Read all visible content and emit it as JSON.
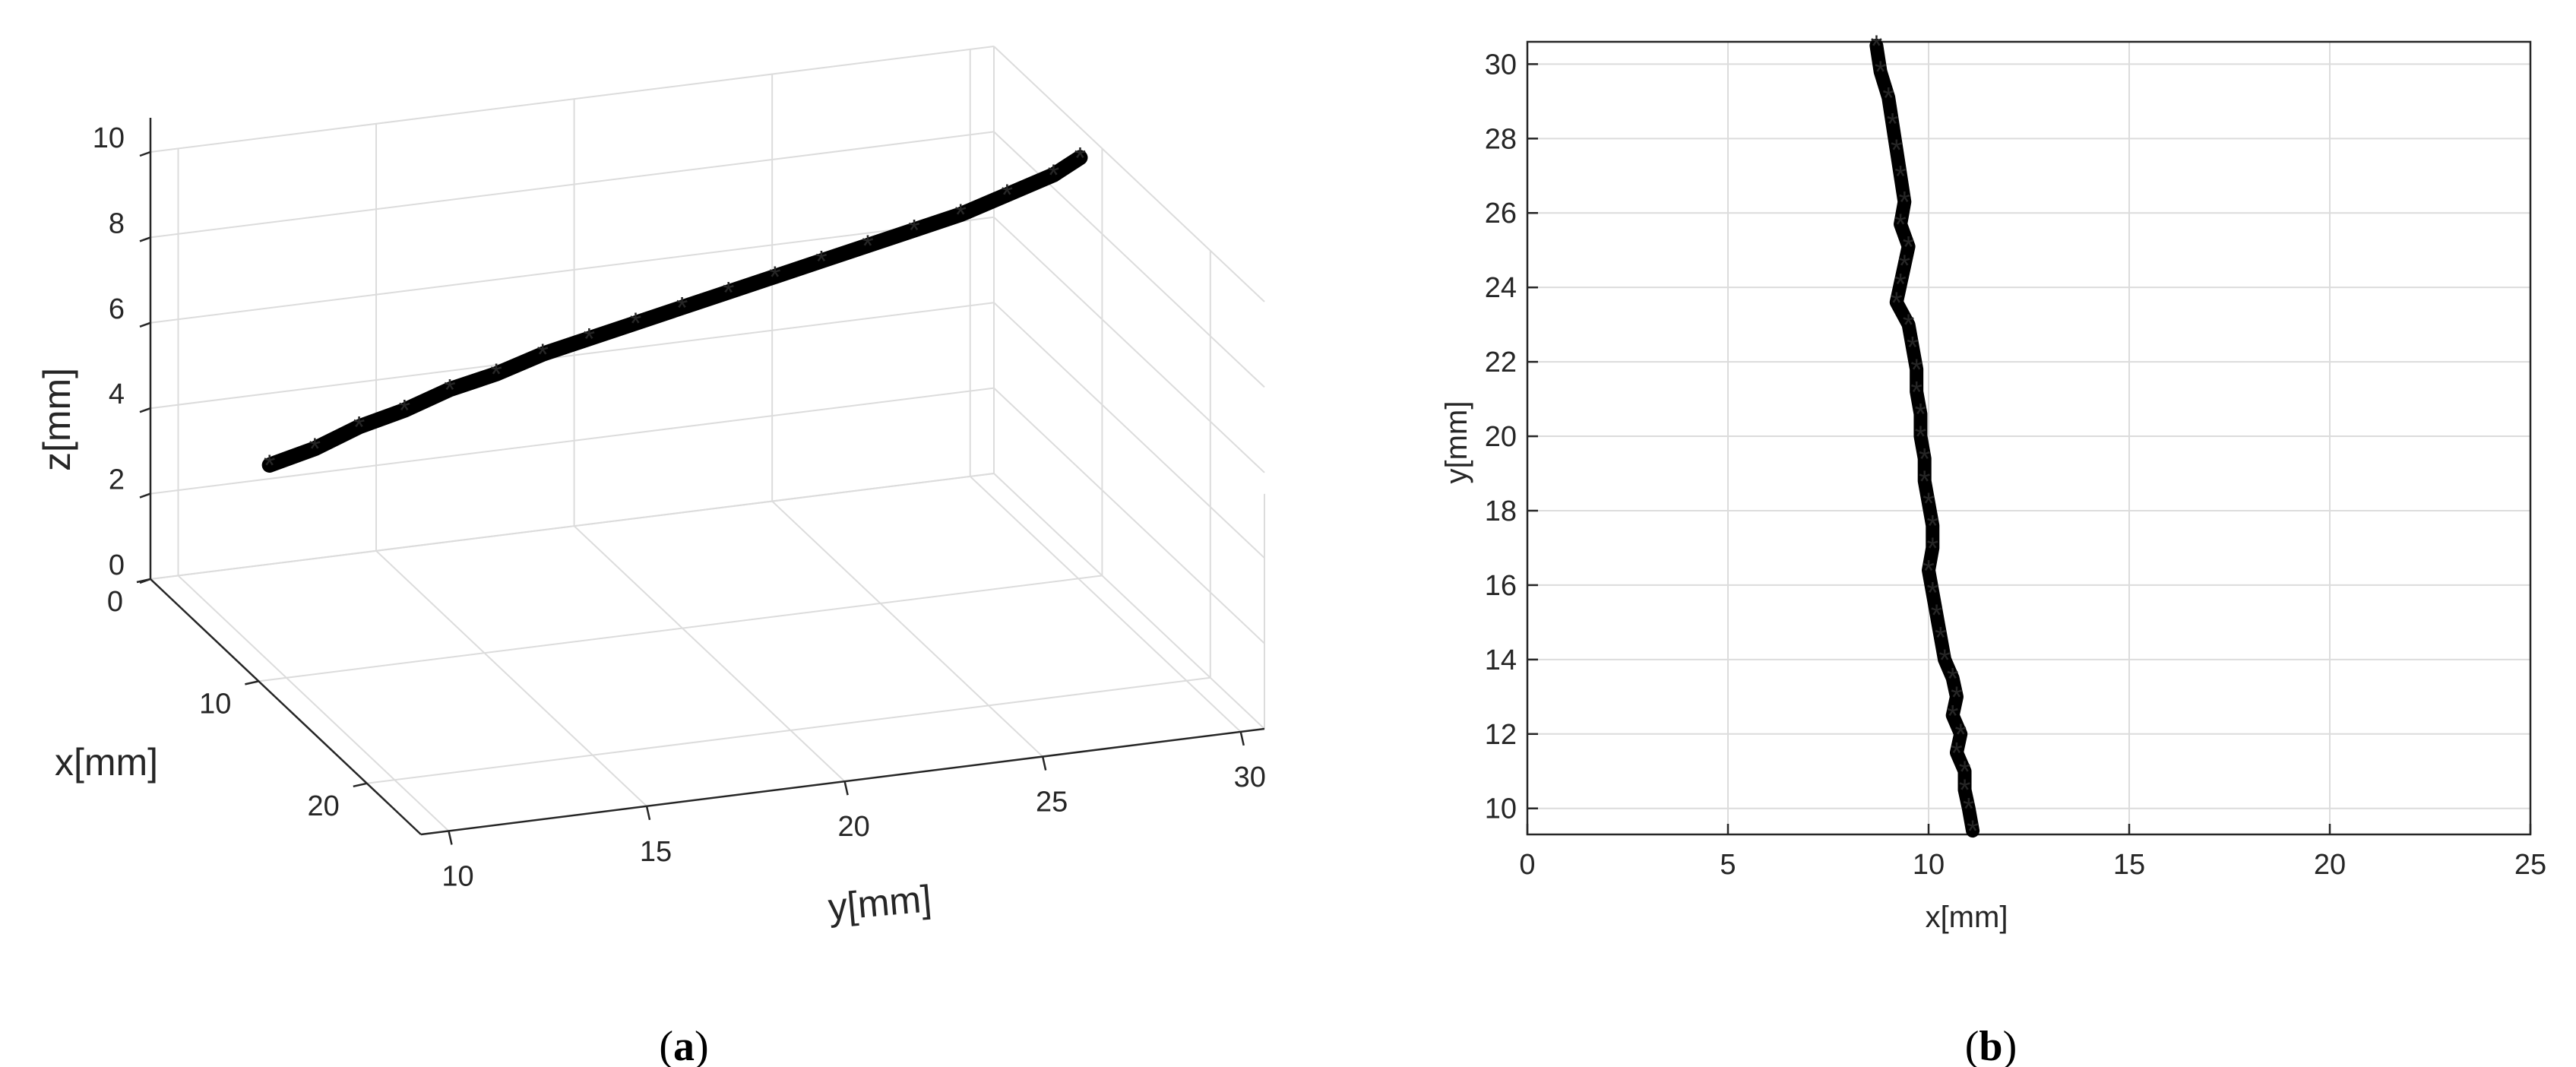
{
  "chart_data": [
    {
      "panel": "(a)",
      "caption_letter": "a",
      "type": "line3d",
      "xlabel": "x[mm]",
      "ylabel": "y[mm]",
      "zlabel": "z[mm]",
      "x_ticks": [
        "0",
        "10",
        "20"
      ],
      "y_ticks": [
        "10",
        "15",
        "20",
        "25",
        "30"
      ],
      "z_ticks": [
        "0",
        "2",
        "4",
        "6",
        "8",
        "10"
      ],
      "xlim": [
        0,
        25
      ],
      "ylim": [
        9.3,
        30.6
      ],
      "zlim": [
        0,
        10
      ],
      "grid": true,
      "marker": "*",
      "color": "#000000",
      "series": [
        {
          "x": [
            11.0,
            10.8,
            10.5,
            10.3,
            10.1,
            10.0,
            9.9,
            9.8,
            9.7,
            9.6,
            9.5,
            9.4,
            9.3,
            9.2,
            9.1,
            9.0,
            8.9,
            8.8,
            8.7
          ],
          "y": [
            9.3,
            10.5,
            11.7,
            12.9,
            14.1,
            15.3,
            16.5,
            17.7,
            18.9,
            20.1,
            21.3,
            22.5,
            23.7,
            24.9,
            26.1,
            27.3,
            28.5,
            29.7,
            30.4
          ],
          "z": [
            5.3,
            5.5,
            5.8,
            6.0,
            6.3,
            6.5,
            6.8,
            7.0,
            7.2,
            7.4,
            7.6,
            7.8,
            8.0,
            8.2,
            8.4,
            8.6,
            8.9,
            9.2,
            9.5
          ]
        }
      ]
    },
    {
      "panel": "(b)",
      "caption_letter": "b",
      "type": "line",
      "xlabel": "x[mm]",
      "ylabel": "y[mm]",
      "x_ticks": [
        "0",
        "5",
        "10",
        "15",
        "20",
        "25"
      ],
      "y_ticks": [
        "10",
        "12",
        "14",
        "16",
        "18",
        "20",
        "22",
        "24",
        "26",
        "28",
        "30"
      ],
      "xlim": [
        0,
        25
      ],
      "ylim": [
        9.3,
        30.6
      ],
      "grid": true,
      "marker": "*",
      "color": "#000000",
      "series": [
        {
          "x": [
            8.7,
            8.8,
            9.0,
            9.1,
            9.2,
            9.3,
            9.4,
            9.3,
            9.5,
            9.4,
            9.3,
            9.2,
            9.5,
            9.6,
            9.7,
            9.7,
            9.8,
            9.8,
            9.9,
            9.9,
            10.0,
            10.1,
            10.1,
            10.0,
            10.1,
            10.2,
            10.3,
            10.4,
            10.6,
            10.7,
            10.6,
            10.8,
            10.7,
            10.9,
            10.9,
            11.0,
            11.1
          ],
          "y": [
            30.5,
            29.8,
            29.1,
            28.4,
            27.7,
            27.0,
            26.3,
            25.7,
            25.1,
            24.6,
            24.1,
            23.6,
            23.0,
            22.4,
            21.8,
            21.2,
            20.6,
            20.0,
            19.4,
            18.8,
            18.2,
            17.6,
            17.0,
            16.4,
            15.8,
            15.2,
            14.6,
            14.0,
            13.5,
            13.0,
            12.5,
            12.0,
            11.5,
            11.0,
            10.5,
            10.0,
            9.4
          ]
        }
      ]
    }
  ]
}
